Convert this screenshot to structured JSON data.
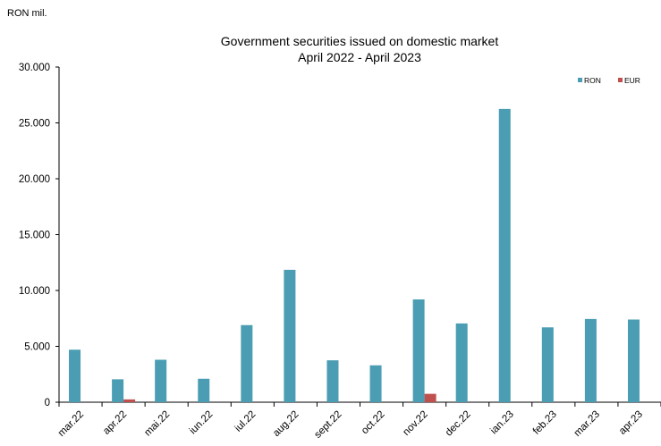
{
  "chart_data": {
    "type": "bar",
    "unit_label": "RON mil.",
    "title": "Government securities issued on domestic market",
    "subtitle": "April 2022 - April 2023",
    "categories": [
      "mar.22",
      "apr.22",
      "mai.22",
      "iun.22",
      "iul.22",
      "aug.22",
      "sept.22",
      "oct.22",
      "nov.22",
      "dec.22",
      "ian.23",
      "feb.23",
      "mar.23",
      "apr.23"
    ],
    "series": [
      {
        "name": "RON",
        "color": "#4a9db2",
        "values": [
          4700,
          2050,
          3800,
          2100,
          6900,
          11850,
          3750,
          3300,
          9200,
          7050,
          26250,
          6700,
          7450,
          7400
        ]
      },
      {
        "name": "EUR",
        "color": "#c0504d",
        "values": [
          0,
          250,
          0,
          0,
          0,
          0,
          0,
          0,
          750,
          0,
          0,
          0,
          0,
          0
        ]
      }
    ],
    "ylim": [
      0,
      30000
    ],
    "yticks": [
      0,
      5000,
      10000,
      15000,
      20000,
      25000,
      30000
    ],
    "ytick_labels": [
      "0",
      "5.000",
      "10.000",
      "15.000",
      "20.000",
      "25.000",
      "30.000"
    ],
    "legend_position": "top-right",
    "grid": false
  }
}
